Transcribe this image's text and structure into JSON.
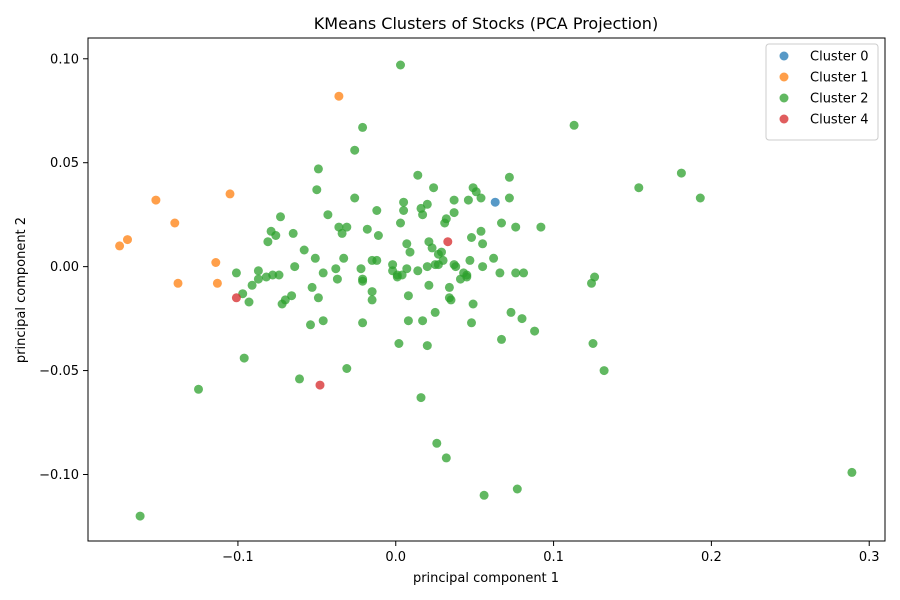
{
  "chart_data": {
    "type": "scatter",
    "title": "KMeans Clusters of Stocks (PCA Projection)",
    "xlabel": "principal component 1",
    "ylabel": "principal component 2",
    "xlim": [
      -0.195,
      0.31
    ],
    "ylim": [
      -0.132,
      0.11
    ],
    "xticks": [
      -0.1,
      0.0,
      0.1,
      0.2,
      0.3
    ],
    "xtick_labels": [
      "−0.1",
      "0.0",
      "0.1",
      "0.2",
      "0.3"
    ],
    "yticks": [
      -0.1,
      -0.05,
      0.0,
      0.05,
      0.1
    ],
    "ytick_labels": [
      "−0.10",
      "−0.05",
      "0.00",
      "0.05",
      "0.10"
    ],
    "grid": false,
    "legend_position": "top-right",
    "series": [
      {
        "name": "Cluster 0",
        "color": "#1f77b4",
        "points": [
          [
            0.063,
            0.031
          ]
        ]
      },
      {
        "name": "Cluster 1",
        "color": "#ff7f0e",
        "points": [
          [
            -0.036,
            0.082
          ],
          [
            -0.152,
            0.032
          ],
          [
            -0.105,
            0.035
          ],
          [
            -0.14,
            0.021
          ],
          [
            -0.17,
            0.013
          ],
          [
            -0.175,
            0.01
          ],
          [
            -0.114,
            0.002
          ],
          [
            -0.138,
            -0.008
          ],
          [
            -0.113,
            -0.008
          ]
        ]
      },
      {
        "name": "Cluster 2",
        "color": "#2ca02c",
        "points": [
          [
            0.003,
            0.097
          ],
          [
            -0.021,
            0.067
          ],
          [
            0.113,
            0.068
          ],
          [
            -0.026,
            0.056
          ],
          [
            -0.049,
            0.047
          ],
          [
            0.014,
            0.044
          ],
          [
            0.072,
            0.043
          ],
          [
            0.181,
            0.045
          ],
          [
            0.154,
            0.038
          ],
          [
            0.193,
            0.033
          ],
          [
            -0.05,
            0.037
          ],
          [
            0.024,
            0.038
          ],
          [
            0.049,
            0.038
          ],
          [
            0.051,
            0.036
          ],
          [
            -0.026,
            0.033
          ],
          [
            0.037,
            0.032
          ],
          [
            0.046,
            0.032
          ],
          [
            0.054,
            0.033
          ],
          [
            0.072,
            0.033
          ],
          [
            0.005,
            0.031
          ],
          [
            0.016,
            0.028
          ],
          [
            0.02,
            0.03
          ],
          [
            0.005,
            0.027
          ],
          [
            0.017,
            0.025
          ],
          [
            0.037,
            0.026
          ],
          [
            -0.043,
            0.025
          ],
          [
            -0.012,
            0.027
          ],
          [
            -0.073,
            0.024
          ],
          [
            0.032,
            0.023
          ],
          [
            0.031,
            0.021
          ],
          [
            0.003,
            0.021
          ],
          [
            0.067,
            0.021
          ],
          [
            0.076,
            0.019
          ],
          [
            0.092,
            0.019
          ],
          [
            -0.036,
            0.019
          ],
          [
            -0.031,
            0.019
          ],
          [
            -0.034,
            0.016
          ],
          [
            -0.018,
            0.018
          ],
          [
            -0.011,
            0.015
          ],
          [
            0.054,
            0.017
          ],
          [
            -0.079,
            0.017
          ],
          [
            -0.076,
            0.015
          ],
          [
            -0.065,
            0.016
          ],
          [
            0.048,
            0.014
          ],
          [
            -0.081,
            0.012
          ],
          [
            0.021,
            0.012
          ],
          [
            0.055,
            0.011
          ],
          [
            0.007,
            0.011
          ],
          [
            0.023,
            0.009
          ],
          [
            -0.058,
            0.008
          ],
          [
            0.009,
            0.007
          ],
          [
            0.029,
            0.007
          ],
          [
            0.027,
            0.006
          ],
          [
            -0.051,
            0.004
          ],
          [
            -0.033,
            0.004
          ],
          [
            -0.015,
            0.003
          ],
          [
            -0.012,
            0.003
          ],
          [
            0.03,
            0.003
          ],
          [
            0.047,
            0.003
          ],
          [
            0.062,
            0.004
          ],
          [
            0.025,
            0.001
          ],
          [
            0.027,
            0.001
          ],
          [
            0.037,
            0.001
          ],
          [
            0.038,
            0.0
          ],
          [
            0.02,
            0.0
          ],
          [
            0.055,
            0.0
          ],
          [
            -0.002,
            0.001
          ],
          [
            -0.064,
            0.0
          ],
          [
            -0.038,
            -0.001
          ],
          [
            -0.022,
            -0.001
          ],
          [
            -0.002,
            -0.002
          ],
          [
            0.007,
            -0.001
          ],
          [
            0.014,
            -0.002
          ],
          [
            0.001,
            -0.004
          ],
          [
            0.001,
            -0.005
          ],
          [
            0.004,
            -0.004
          ],
          [
            0.043,
            -0.003
          ],
          [
            0.045,
            -0.004
          ],
          [
            0.045,
            -0.005
          ],
          [
            0.041,
            -0.006
          ],
          [
            0.066,
            -0.003
          ],
          [
            0.076,
            -0.003
          ],
          [
            0.081,
            -0.003
          ],
          [
            -0.101,
            -0.003
          ],
          [
            -0.087,
            -0.002
          ],
          [
            -0.078,
            -0.004
          ],
          [
            -0.074,
            -0.004
          ],
          [
            -0.082,
            -0.005
          ],
          [
            -0.087,
            -0.006
          ],
          [
            -0.046,
            -0.003
          ],
          [
            -0.037,
            -0.006
          ],
          [
            -0.021,
            -0.006
          ],
          [
            -0.021,
            -0.007
          ],
          [
            0.126,
            -0.005
          ],
          [
            0.124,
            -0.008
          ],
          [
            -0.091,
            -0.009
          ],
          [
            -0.053,
            -0.01
          ],
          [
            0.021,
            -0.009
          ],
          [
            0.034,
            -0.01
          ],
          [
            -0.015,
            -0.012
          ],
          [
            -0.097,
            -0.013
          ],
          [
            -0.066,
            -0.014
          ],
          [
            -0.07,
            -0.016
          ],
          [
            -0.072,
            -0.018
          ],
          [
            -0.049,
            -0.015
          ],
          [
            -0.093,
            -0.017
          ],
          [
            -0.015,
            -0.016
          ],
          [
            0.008,
            -0.014
          ],
          [
            0.034,
            -0.015
          ],
          [
            0.035,
            -0.016
          ],
          [
            0.049,
            -0.018
          ],
          [
            0.073,
            -0.022
          ],
          [
            0.08,
            -0.025
          ],
          [
            0.025,
            -0.022
          ],
          [
            0.017,
            -0.026
          ],
          [
            0.008,
            -0.026
          ],
          [
            -0.046,
            -0.026
          ],
          [
            -0.054,
            -0.028
          ],
          [
            -0.021,
            -0.027
          ],
          [
            0.048,
            -0.027
          ],
          [
            0.088,
            -0.031
          ],
          [
            0.067,
            -0.035
          ],
          [
            0.125,
            -0.037
          ],
          [
            0.002,
            -0.037
          ],
          [
            0.02,
            -0.038
          ],
          [
            -0.096,
            -0.044
          ],
          [
            -0.031,
            -0.049
          ],
          [
            0.132,
            -0.05
          ],
          [
            -0.061,
            -0.054
          ],
          [
            -0.125,
            -0.059
          ],
          [
            0.016,
            -0.063
          ],
          [
            0.026,
            -0.085
          ],
          [
            0.032,
            -0.092
          ],
          [
            0.289,
            -0.099
          ],
          [
            0.077,
            -0.107
          ],
          [
            0.056,
            -0.11
          ],
          [
            -0.162,
            -0.12
          ]
        ]
      },
      {
        "name": "Cluster 4",
        "color": "#d62728",
        "points": [
          [
            0.033,
            0.012
          ],
          [
            -0.101,
            -0.015
          ],
          [
            -0.048,
            -0.057
          ]
        ]
      }
    ]
  }
}
